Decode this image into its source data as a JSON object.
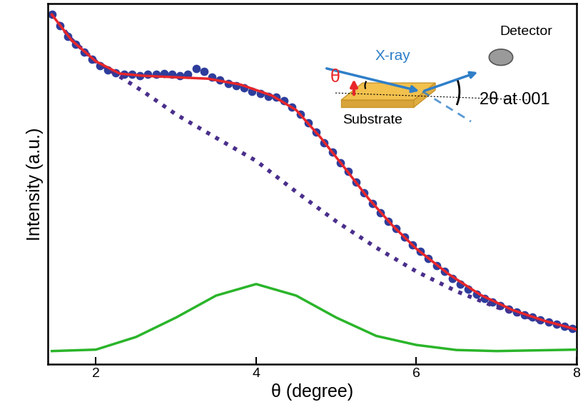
{
  "chart_data": {
    "type": "scatter",
    "x_label": "θ (degree)",
    "y_label": "Intensity (a.u.)",
    "xlim": [
      1.4,
      8
    ],
    "xticks": [
      2,
      4,
      6,
      8
    ],
    "ylim": [
      0,
      100
    ],
    "yticks": [],
    "tick_labels": "x",
    "grid": false,
    "annotations": {
      "beam": "X-ray",
      "detector": "Detector",
      "substrate": "Substrate",
      "angle": "θ",
      "scattering": "2θ at 001"
    },
    "series": [
      {
        "type": "scatter",
        "color": "#2e3d9c",
        "marker": "circle",
        "x": [
          1.45,
          1.55,
          1.65,
          1.75,
          1.85,
          1.95,
          2.05,
          2.15,
          2.25,
          2.35,
          2.45,
          2.55,
          2.65,
          2.75,
          2.85,
          2.95,
          3.05,
          3.15,
          3.25,
          3.35,
          3.45,
          3.55,
          3.65,
          3.75,
          3.85,
          3.95,
          4.05,
          4.15,
          4.25,
          4.35,
          4.45,
          4.55,
          4.65,
          4.75,
          4.85,
          4.95,
          5.05,
          5.15,
          5.25,
          5.35,
          5.45,
          5.55,
          5.65,
          5.75,
          5.85,
          5.95,
          6.05,
          6.15,
          6.25,
          6.35,
          6.45,
          6.55,
          6.65,
          6.75,
          6.85,
          6.95,
          7.05,
          7.15,
          7.25,
          7.35,
          7.45,
          7.55,
          7.65,
          7.75,
          7.85,
          7.95
        ],
        "values": [
          97,
          94,
          91,
          88.7,
          86.5,
          84.6,
          82.8,
          81.6,
          80.8,
          80.4,
          80.4,
          80,
          80.4,
          80.4,
          80.6,
          80.4,
          80,
          80.4,
          82,
          81.2,
          79.6,
          78.8,
          77.8,
          77.2,
          76.6,
          75.6,
          75,
          74.3,
          74.1,
          73,
          71.3,
          69.3,
          66.9,
          64.4,
          61.4,
          58.8,
          55.8,
          53.5,
          50.5,
          47.5,
          44.6,
          42,
          39.6,
          37.6,
          35.2,
          33,
          31.3,
          29.3,
          27.3,
          25.7,
          23.8,
          22.2,
          20.8,
          19.4,
          18.2,
          17.2,
          16.2,
          15.2,
          14.5,
          13.7,
          13.1,
          12.3,
          11.7,
          11.1,
          10.5,
          9.9
        ]
      },
      {
        "type": "line",
        "color": "#4a2f8c",
        "line_style": "dotted",
        "x": [
          1.45,
          1.7,
          2.0,
          2.2,
          2.6,
          3.0,
          3.5,
          4.0,
          4.5,
          5.0,
          5.5,
          6.0,
          6.5,
          7.0,
          7.5,
          8.0
        ],
        "values": [
          97,
          90,
          84,
          81.2,
          75.5,
          69.3,
          62.8,
          56.4,
          47.8,
          39.6,
          32.3,
          25.7,
          20.2,
          15.8,
          12.3,
          9.5
        ]
      },
      {
        "type": "line",
        "color": "#e8262a",
        "line_style": "solid",
        "x": [
          1.45,
          1.7,
          2.0,
          2.3,
          2.6,
          3.0,
          3.4,
          3.8,
          4.2,
          4.5,
          4.8,
          5.1,
          5.4,
          5.7,
          6.0,
          6.4,
          6.8,
          7.2,
          7.6,
          8.0
        ],
        "values": [
          97,
          89.8,
          84,
          80.6,
          80,
          79.6,
          79.2,
          77.6,
          74.5,
          70.5,
          63,
          54.6,
          46,
          38.5,
          32,
          25,
          19.2,
          15,
          12,
          9.6
        ]
      },
      {
        "type": "line",
        "color": "#2ab52a",
        "line_style": "solid",
        "x": [
          1.45,
          2.0,
          2.5,
          3.0,
          3.5,
          4.0,
          4.5,
          5.0,
          5.5,
          6.0,
          6.5,
          7.0,
          8.0
        ],
        "values": [
          3.6,
          4.0,
          7.5,
          12.9,
          19.0,
          22.2,
          19.0,
          12.9,
          7.8,
          5.3,
          3.9,
          3.6,
          4.0
        ]
      }
    ]
  }
}
